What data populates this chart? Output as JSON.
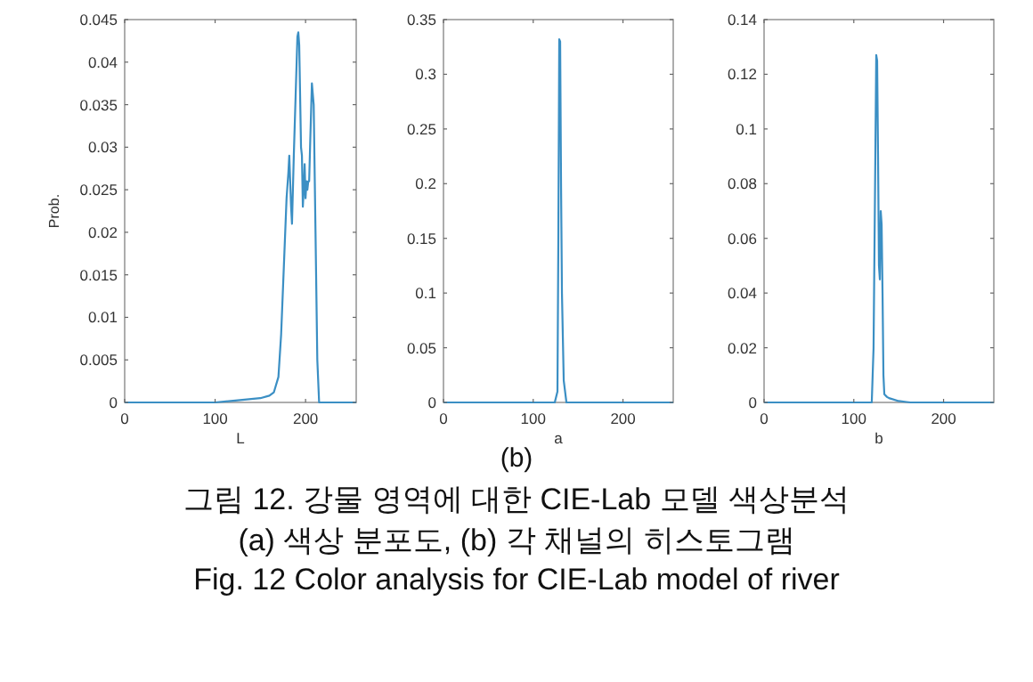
{
  "chart_data": [
    {
      "type": "line",
      "xlabel": "L",
      "ylabel": "Prob.",
      "xlim": [
        0,
        256
      ],
      "xticks": [
        0,
        100,
        200
      ],
      "ylim": [
        0,
        0.045
      ],
      "yticks": [
        0,
        0.005,
        0.01,
        0.015,
        0.02,
        0.025,
        0.03,
        0.035,
        0.04,
        0.045
      ],
      "grid": false,
      "series": [
        {
          "color": "#3b8fc4",
          "x": [
            0,
            50,
            100,
            130,
            150,
            160,
            165,
            170,
            173,
            176,
            179,
            181,
            182,
            184,
            185,
            187,
            189,
            191,
            192,
            193,
            195,
            196,
            197,
            198,
            199,
            200,
            201,
            202,
            203,
            204,
            205,
            207,
            209,
            211,
            213,
            215,
            256
          ],
          "values": [
            0,
            0,
            0,
            0.0003,
            0.0005,
            0.0008,
            0.0012,
            0.003,
            0.008,
            0.016,
            0.024,
            0.027,
            0.029,
            0.023,
            0.021,
            0.029,
            0.036,
            0.043,
            0.0435,
            0.042,
            0.03,
            0.029,
            0.023,
            0.025,
            0.028,
            0.024,
            0.026,
            0.025,
            0.026,
            0.026,
            0.03,
            0.0375,
            0.035,
            0.02,
            0.005,
            0,
            0
          ]
        }
      ]
    },
    {
      "type": "line",
      "xlabel": "a",
      "xlim": [
        0,
        256
      ],
      "xticks": [
        0,
        100,
        200
      ],
      "ylim": [
        0,
        0.35
      ],
      "yticks": [
        0,
        0.05,
        0.1,
        0.15,
        0.2,
        0.25,
        0.3,
        0.35
      ],
      "grid": false,
      "series": [
        {
          "color": "#3b8fc4",
          "x": [
            0,
            110,
            124,
            127,
            128,
            129,
            130,
            131,
            132,
            134,
            137,
            150,
            256
          ],
          "values": [
            0,
            0,
            0,
            0.01,
            0.15,
            0.332,
            0.33,
            0.2,
            0.1,
            0.02,
            0,
            0,
            0
          ]
        }
      ]
    },
    {
      "type": "line",
      "xlabel": "b",
      "xlim": [
        0,
        256
      ],
      "xticks": [
        0,
        100,
        200
      ],
      "ylim": [
        0,
        0.14
      ],
      "yticks": [
        0,
        0.02,
        0.04,
        0.06,
        0.08,
        0.1,
        0.12,
        0.14
      ],
      "grid": false,
      "series": [
        {
          "color": "#3b8fc4",
          "x": [
            0,
            100,
            120,
            122,
            124,
            125,
            126,
            127,
            128,
            129,
            130,
            131,
            132,
            133,
            134,
            137,
            140,
            150,
            163,
            256
          ],
          "values": [
            0,
            0,
            0,
            0.02,
            0.09,
            0.127,
            0.125,
            0.09,
            0.05,
            0.045,
            0.07,
            0.065,
            0.04,
            0.01,
            0.003,
            0.002,
            0.0015,
            0.0005,
            0,
            0
          ]
        }
      ]
    },
    {
      "type": "other",
      "annotations": [
        "(b)",
        "그림 12. 강물 영역에 대한 CIE-Lab 모델 색상분석",
        "(a) 색상 분포도, (b) 각 채널의 히스토그램",
        "Fig. 12 Color analysis for CIE-Lab model of river"
      ]
    }
  ]
}
